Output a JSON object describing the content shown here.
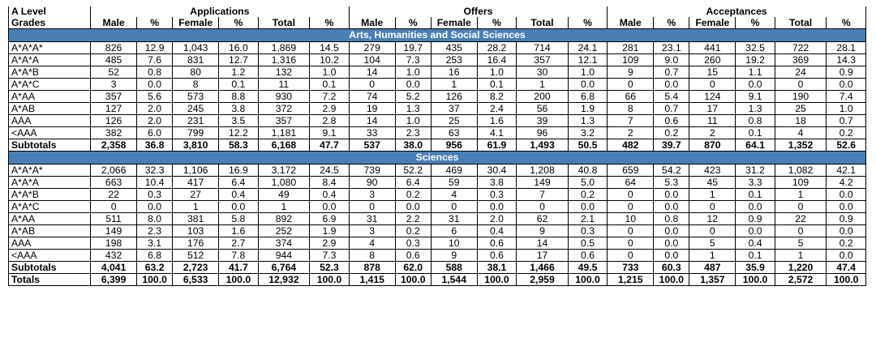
{
  "header": {
    "grades_line1": "A Level",
    "grades_line2": "Grades",
    "groups": [
      "Applications",
      "Offers",
      "Acceptances"
    ],
    "subcols": [
      "Male",
      "%",
      "Female",
      "%",
      "Total",
      "%"
    ]
  },
  "sections": [
    {
      "title": "Arts, Humanities and Social Sciences",
      "rows": [
        {
          "grade": "A*A*A*",
          "cells": [
            "826",
            "12.9",
            "1,043",
            "16.0",
            "1,869",
            "14.5",
            "279",
            "19.7",
            "435",
            "28.2",
            "714",
            "24.1",
            "281",
            "23.1",
            "441",
            "32.5",
            "722",
            "28.1"
          ]
        },
        {
          "grade": "A*A*A",
          "cells": [
            "485",
            "7.6",
            "831",
            "12.7",
            "1,316",
            "10.2",
            "104",
            "7.3",
            "253",
            "16.4",
            "357",
            "12.1",
            "109",
            "9.0",
            "260",
            "19.2",
            "369",
            "14.3"
          ]
        },
        {
          "grade": "A*A*B",
          "cells": [
            "52",
            "0.8",
            "80",
            "1.2",
            "132",
            "1.0",
            "14",
            "1.0",
            "16",
            "1.0",
            "30",
            "1.0",
            "9",
            "0.7",
            "15",
            "1.1",
            "24",
            "0.9"
          ]
        },
        {
          "grade": "A*A*C",
          "cells": [
            "3",
            "0.0",
            "8",
            "0.1",
            "11",
            "0.1",
            "0",
            "0.0",
            "1",
            "0.1",
            "1",
            "0.0",
            "0",
            "0.0",
            "0",
            "0.0",
            "0",
            "0.0"
          ]
        },
        {
          "grade": "A*AA",
          "cells": [
            "357",
            "5.6",
            "573",
            "8.8",
            "930",
            "7.2",
            "74",
            "5.2",
            "126",
            "8.2",
            "200",
            "6.8",
            "66",
            "5.4",
            "124",
            "9.1",
            "190",
            "7.4"
          ]
        },
        {
          "grade": "A*AB",
          "cells": [
            "127",
            "2.0",
            "245",
            "3.8",
            "372",
            "2.9",
            "19",
            "1.3",
            "37",
            "2.4",
            "56",
            "1.9",
            "8",
            "0.7",
            "17",
            "1.3",
            "25",
            "1.0"
          ]
        },
        {
          "grade": "AAA",
          "cells": [
            "126",
            "2.0",
            "231",
            "3.5",
            "357",
            "2.8",
            "14",
            "1.0",
            "25",
            "1.6",
            "39",
            "1.3",
            "7",
            "0.6",
            "11",
            "0.8",
            "18",
            "0.7"
          ]
        },
        {
          "grade": "<AAA",
          "cells": [
            "382",
            "6.0",
            "799",
            "12.2",
            "1,181",
            "9.1",
            "33",
            "2.3",
            "63",
            "4.1",
            "96",
            "3.2",
            "2",
            "0.2",
            "2",
            "0.1",
            "4",
            "0.2"
          ]
        }
      ],
      "subtotal": {
        "grade": "Subtotals",
        "cells": [
          "2,358",
          "36.8",
          "3,810",
          "58.3",
          "6,168",
          "47.7",
          "537",
          "38.0",
          "956",
          "61.9",
          "1,493",
          "50.5",
          "482",
          "39.7",
          "870",
          "64.1",
          "1,352",
          "52.6"
        ]
      }
    },
    {
      "title": "Sciences",
      "rows": [
        {
          "grade": "A*A*A*",
          "cells": [
            "2,066",
            "32.3",
            "1,106",
            "16.9",
            "3,172",
            "24.5",
            "739",
            "52.2",
            "469",
            "30.4",
            "1,208",
            "40.8",
            "659",
            "54.2",
            "423",
            "31.2",
            "1,082",
            "42.1"
          ]
        },
        {
          "grade": "A*A*A",
          "cells": [
            "663",
            "10.4",
            "417",
            "6.4",
            "1,080",
            "8.4",
            "90",
            "6.4",
            "59",
            "3.8",
            "149",
            "5.0",
            "64",
            "5.3",
            "45",
            "3.3",
            "109",
            "4.2"
          ]
        },
        {
          "grade": "A*A*B",
          "cells": [
            "22",
            "0.3",
            "27",
            "0.4",
            "49",
            "0.4",
            "3",
            "0.2",
            "4",
            "0.3",
            "7",
            "0.2",
            "0",
            "0.0",
            "1",
            "0.1",
            "1",
            "0.0"
          ]
        },
        {
          "grade": "A*A*C",
          "cells": [
            "0",
            "0.0",
            "1",
            "0.0",
            "1",
            "0.0",
            "0",
            "0.0",
            "0",
            "0.0",
            "0",
            "0.0",
            "0",
            "0.0",
            "0",
            "0.0",
            "0",
            "0.0"
          ]
        },
        {
          "grade": "A*AA",
          "cells": [
            "511",
            "8.0",
            "381",
            "5.8",
            "892",
            "6.9",
            "31",
            "2.2",
            "31",
            "2.0",
            "62",
            "2.1",
            "10",
            "0.8",
            "12",
            "0.9",
            "22",
            "0.9"
          ]
        },
        {
          "grade": "A*AB",
          "cells": [
            "149",
            "2.3",
            "103",
            "1.6",
            "252",
            "1.9",
            "3",
            "0.2",
            "6",
            "0.4",
            "9",
            "0.3",
            "0",
            "0.0",
            "0",
            "0.0",
            "0",
            "0.0"
          ]
        },
        {
          "grade": "AAA",
          "cells": [
            "198",
            "3.1",
            "176",
            "2.7",
            "374",
            "2.9",
            "4",
            "0.3",
            "10",
            "0.6",
            "14",
            "0.5",
            "0",
            "0.0",
            "5",
            "0.4",
            "5",
            "0.2"
          ]
        },
        {
          "grade": "<AAA",
          "cells": [
            "432",
            "6.8",
            "512",
            "7.8",
            "944",
            "7.3",
            "8",
            "0.6",
            "9",
            "0.6",
            "17",
            "0.6",
            "0",
            "0.0",
            "1",
            "0.1",
            "1",
            "0.0"
          ]
        }
      ],
      "subtotal": {
        "grade": "Subtotals",
        "cells": [
          "4,041",
          "63.2",
          "2,723",
          "41.7",
          "6,764",
          "52.3",
          "878",
          "62.0",
          "588",
          "38.1",
          "1,466",
          "49.5",
          "733",
          "60.3",
          "487",
          "35.9",
          "1,220",
          "47.4"
        ]
      }
    }
  ],
  "totals": {
    "grade": "Totals",
    "cells": [
      "6,399",
      "100.0",
      "6,533",
      "100.0",
      "12,932",
      "100.0",
      "1,415",
      "100.0",
      "1,544",
      "100.0",
      "2,959",
      "100.0",
      "1,215",
      "100.0",
      "1,357",
      "100.0",
      "2,572",
      "100.0"
    ]
  }
}
